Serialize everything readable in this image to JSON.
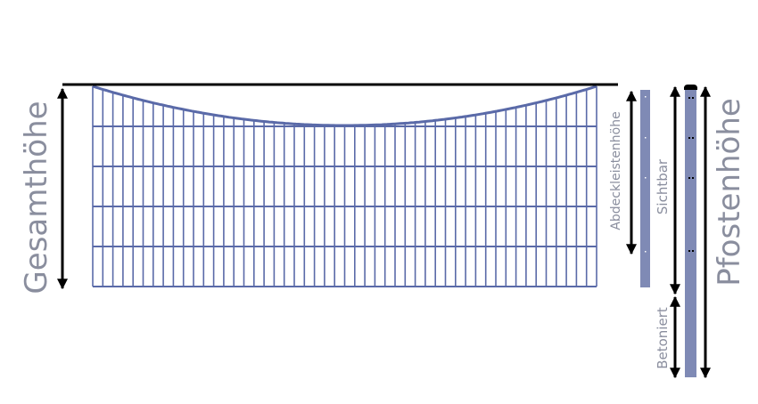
{
  "labels": {
    "total_height": "Gesamthöhe",
    "cover_strip_height": "Abdeckleistenhöhe",
    "visible": "Sichtbar",
    "concreted": "Betoniert",
    "post_height": "Pfostenhöhe"
  },
  "colors": {
    "mesh": "#5a6aa8",
    "post": "#7f8ab5",
    "label": "#8a8e9e",
    "arrow": "#000000"
  }
}
